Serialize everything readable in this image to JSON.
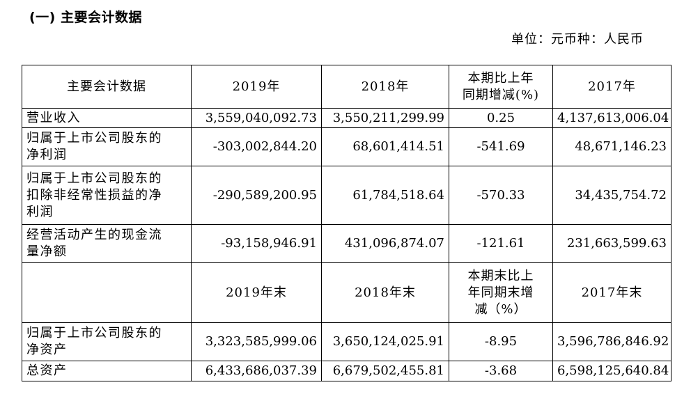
{
  "section_title": "(一) 主要会计数据",
  "unit_note": "单位：元币种：人民币",
  "table": {
    "header": {
      "label": "主要会计数据",
      "col1": "2019年",
      "col2": "2018年",
      "col3_line1": "本期比上年",
      "col3_line2": "同期增减(%)",
      "col4": "2017年"
    },
    "rows": [
      {
        "label": "营业收入",
        "v2019": "3,559,040,092.73",
        "v2018": "3,550,211,299.99",
        "change": "0.25",
        "v2017": "4,137,613,006.04"
      },
      {
        "label_line1": "归属于上市公司股东的",
        "label_line2": "净利润",
        "v2019": "-303,002,844.20",
        "v2018": "68,601,414.51",
        "change": "-541.69",
        "v2017": "48,671,146.23"
      },
      {
        "label_line1": "归属于上市公司股东的",
        "label_line2": "扣除非经常性损益的净",
        "label_line3": "利润",
        "v2019": "-290,589,200.95",
        "v2018": "61,784,518.64",
        "change": "-570.33",
        "v2017": "34,435,754.72"
      },
      {
        "label_line1": "经营活动产生的现金流",
        "label_line2": "量净额",
        "v2019": "-93,158,946.91",
        "v2018": "431,096,874.07",
        "change": "-121.61",
        "v2017": "231,663,599.63"
      }
    ],
    "header2": {
      "col1": "2019年末",
      "col2": "2018年末",
      "col3_line1": "本期末比上",
      "col3_line2": "年同期末增",
      "col3_line3": "减（%）",
      "col4": "2017年末"
    },
    "rows2": [
      {
        "label_line1": "归属于上市公司股东的",
        "label_line2": "净资产",
        "v2019": "3,323,585,999.06",
        "v2018": "3,650,124,025.91",
        "change": "-8.95",
        "v2017": "3,596,786,846.92"
      },
      {
        "label": "总资产",
        "v2019": "6,433,686,037.39",
        "v2018": "6,679,502,455.81",
        "change": "-3.68",
        "v2017": "6,598,125,640.84"
      }
    ]
  }
}
